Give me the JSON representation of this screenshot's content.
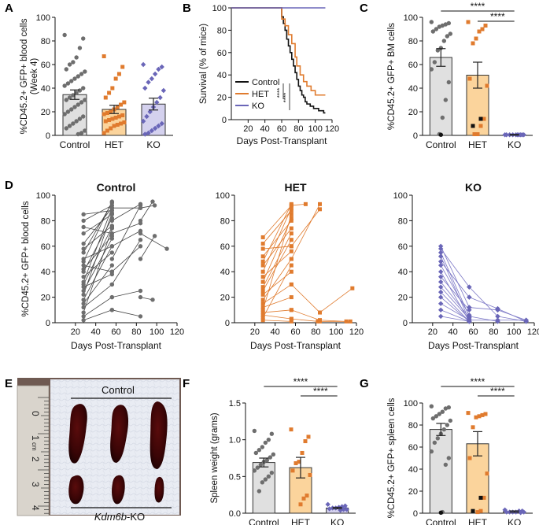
{
  "figure": {
    "panel_labels": [
      "A",
      "B",
      "C",
      "D",
      "E",
      "F",
      "G"
    ],
    "photo": {
      "top_label": "Control",
      "bottom_label": "-KO",
      "bottom_label_italic": "Kdm6b",
      "ruler_ticks": [
        "0",
        "1",
        "2",
        "3",
        "4"
      ],
      "ruler_unit": "cm"
    }
  },
  "colors": {
    "control_fill": "#e0e0e0",
    "control_point": "#6e6e6e",
    "het_fill": "#fbd49c",
    "het_point": "#e07b2e",
    "ko_fill": "#d4d1ee",
    "ko_point": "#6a66b8",
    "black": "#111111"
  },
  "chart_data": [
    {
      "panel": "A",
      "type": "bar",
      "title": "",
      "ylabel": "%CD45.2+ GFP+ blood cells (Week 4)",
      "categories": [
        "Control",
        "HET",
        "KO"
      ],
      "values": [
        34.5,
        22.0,
        26.5
      ],
      "errors": [
        4,
        3.5,
        5
      ],
      "ylim": [
        0,
        100
      ],
      "yticks": [
        0,
        20,
        40,
        60,
        80,
        100
      ],
      "points": [
        [
          85,
          82,
          74,
          66,
          62,
          60,
          56,
          54,
          52,
          50,
          48,
          46,
          44,
          42,
          40,
          38,
          36,
          34,
          32,
          30,
          30,
          28,
          26,
          24,
          22,
          20,
          18,
          16,
          14,
          12,
          10,
          8,
          6,
          4,
          2,
          1
        ],
        [
          67,
          58,
          52,
          48,
          40,
          36,
          32,
          28,
          26,
          24,
          22,
          20,
          19,
          18,
          17,
          16,
          15,
          14,
          13,
          12,
          11,
          10,
          9,
          8,
          6,
          4,
          2
        ],
        [
          60,
          58,
          56,
          52,
          48,
          45,
          40,
          38,
          32,
          28,
          24,
          20,
          16,
          12,
          10,
          8,
          6,
          4,
          2,
          1
        ]
      ]
    },
    {
      "panel": "B",
      "type": "line",
      "ylabel": "Survival (% of mice)",
      "xlabel": "Days Post-Transplant",
      "xlim": [
        0,
        120
      ],
      "ylim": [
        0,
        100
      ],
      "xticks": [
        20,
        40,
        60,
        80,
        100,
        120
      ],
      "yticks": [
        0,
        20,
        40,
        60,
        80,
        100
      ],
      "series": [
        {
          "name": "Control",
          "x": [
            0,
            55,
            60,
            62,
            64,
            66,
            68,
            70,
            72,
            74,
            76,
            78,
            80,
            82,
            84,
            86,
            88,
            90,
            94,
            98,
            104,
            110,
            112
          ],
          "y": [
            100,
            100,
            92,
            86,
            80,
            72,
            66,
            60,
            54,
            48,
            42,
            36,
            30,
            26,
            22,
            20,
            16,
            14,
            12,
            10,
            8,
            6,
            6
          ]
        },
        {
          "name": "HET",
          "x": [
            0,
            55,
            60,
            64,
            68,
            72,
            76,
            78,
            82,
            86,
            90,
            95,
            100,
            112
          ],
          "y": [
            100,
            100,
            90,
            84,
            76,
            68,
            56,
            48,
            40,
            34,
            30,
            26,
            22,
            22
          ]
        },
        {
          "name": "KO",
          "x": [
            0,
            112
          ],
          "y": [
            100,
            100
          ]
        }
      ],
      "significance": [
        "****",
        "****"
      ]
    },
    {
      "panel": "C",
      "type": "bar",
      "ylabel": "%CD45.2+ GFP+ BM cells",
      "categories": [
        "Control",
        "HET",
        "KO"
      ],
      "values": [
        66,
        51,
        0.5
      ],
      "errors": [
        7.5,
        11,
        0.3
      ],
      "ylim": [
        0,
        100
      ],
      "yticks": [
        0,
        20,
        40,
        60,
        80,
        100
      ],
      "points": [
        [
          96,
          95,
          94,
          93,
          92,
          90,
          88,
          86,
          84,
          80,
          74,
          72,
          62,
          56,
          45,
          30,
          15,
          1
        ],
        [
          96,
          93,
          90,
          88,
          82,
          78,
          48,
          42,
          14,
          8,
          1,
          1
        ],
        [
          0.5,
          0.5,
          0.5,
          0.5,
          0.5,
          0.5,
          0.5,
          0.5,
          0.5,
          0.5
        ]
      ],
      "significance": [
        {
          "between": [
            "Control",
            "KO"
          ],
          "label": "****"
        },
        {
          "between": [
            "HET",
            "KO"
          ],
          "label": "****"
        }
      ]
    },
    {
      "panel": "D",
      "type": "line",
      "ylabel": "%CD45.2+ GFP+ blood cells",
      "xlabel": "Days Post-Transplant",
      "subplots": [
        {
          "title": "Control",
          "x_days": [
            28,
            56,
            84,
            112
          ],
          "tracks": [
            [
              28,
              85,
              56,
              88
            ],
            [
              28,
              80,
              56,
              92
            ],
            [
              28,
              75,
              56,
              70
            ],
            [
              28,
              70,
              56,
              85
            ],
            [
              28,
              62,
              56,
              90
            ],
            [
              28,
              58,
              56,
              76
            ],
            [
              28,
              55,
              56,
              94
            ],
            [
              28,
              50,
              56,
              60
            ],
            [
              28,
              48,
              56,
              95
            ],
            [
              28,
              45,
              56,
              40
            ],
            [
              28,
              42,
              56,
              68
            ],
            [
              28,
              40,
              56,
              82
            ],
            [
              28,
              36,
              56,
              55
            ],
            [
              28,
              32,
              56,
              90
            ],
            [
              28,
              30,
              56,
              75
            ],
            [
              28,
              28,
              56,
              38
            ],
            [
              28,
              25,
              56,
              66
            ],
            [
              28,
              22,
              56,
              86
            ],
            [
              28,
              18,
              56,
              60
            ],
            [
              28,
              15,
              56,
              45
            ],
            [
              28,
              12,
              56,
              30
            ],
            [
              28,
              8,
              56,
              74
            ],
            [
              28,
              5,
              56,
              20
            ],
            [
              28,
              2,
              56,
              10
            ],
            [
              56,
              80,
              84,
              93
            ],
            [
              56,
              70,
              84,
              78
            ],
            [
              56,
              90,
              84,
              90
            ],
            [
              56,
              60,
              84,
              72
            ],
            [
              56,
              50,
              84,
              92
            ],
            [
              56,
              40,
              84,
              60
            ],
            [
              56,
              30,
              84,
              65
            ],
            [
              56,
              20,
              84,
              25
            ],
            [
              56,
              10,
              84,
              5
            ],
            [
              84,
              80,
              96,
              95
            ],
            [
              84,
              70,
              110,
              58
            ],
            [
              84,
              90,
              98,
              92
            ],
            [
              84,
              50,
              98,
              68
            ],
            [
              84,
              20,
              96,
              18
            ]
          ]
        },
        {
          "title": "HET",
          "x_days": [
            28,
            56,
            84,
            112
          ],
          "tracks": [
            [
              28,
              67,
              56,
              92
            ],
            [
              28,
              62,
              56,
              88
            ],
            [
              28,
              58,
              56,
              60
            ],
            [
              28,
              52,
              56,
              80
            ],
            [
              28,
              48,
              56,
              93
            ],
            [
              28,
              45,
              56,
              74
            ],
            [
              28,
              40,
              56,
              90
            ],
            [
              28,
              36,
              56,
              56
            ],
            [
              28,
              32,
              56,
              82
            ],
            [
              28,
              28,
              56,
              70
            ],
            [
              28,
              25,
              56,
              65
            ],
            [
              28,
              22,
              56,
              40
            ],
            [
              28,
              18,
              56,
              50
            ],
            [
              28,
              15,
              56,
              30
            ],
            [
              28,
              12,
              56,
              20
            ],
            [
              28,
              10,
              56,
              85
            ],
            [
              28,
              8,
              56,
              10
            ],
            [
              28,
              6,
              56,
              3
            ],
            [
              28,
              4,
              56,
              45
            ],
            [
              28,
              2,
              56,
              1
            ],
            [
              56,
              92,
              70,
              93
            ],
            [
              56,
              60,
              84,
              89
            ],
            [
              56,
              50,
              84,
              93
            ],
            [
              56,
              30,
              84,
              8
            ],
            [
              56,
              10,
              84,
              2
            ],
            [
              56,
              3,
              82,
              1
            ],
            [
              84,
              2,
              110,
              1
            ],
            [
              84,
              8,
              116,
              27
            ],
            [
              84,
              1,
              114,
              1
            ]
          ]
        },
        {
          "title": "KO",
          "x_days": [
            28,
            56,
            84,
            112
          ],
          "tracks": [
            [
              28,
              60,
              56,
              12
            ],
            [
              28,
              58,
              56,
              28
            ],
            [
              28,
              55,
              56,
              5
            ],
            [
              28,
              52,
              56,
              2
            ],
            [
              28,
              48,
              56,
              20
            ],
            [
              28,
              45,
              56,
              6
            ],
            [
              28,
              40,
              56,
              1
            ],
            [
              28,
              36,
              56,
              10
            ],
            [
              28,
              32,
              56,
              4
            ],
            [
              28,
              28,
              56,
              3
            ],
            [
              28,
              24,
              56,
              1
            ],
            [
              28,
              20,
              56,
              1
            ],
            [
              28,
              15,
              56,
              2
            ],
            [
              28,
              10,
              56,
              1
            ],
            [
              28,
              5,
              56,
              1
            ],
            [
              56,
              28,
              84,
              5
            ],
            [
              56,
              12,
              84,
              10
            ],
            [
              56,
              20,
              84,
              11
            ],
            [
              56,
              5,
              84,
              1
            ],
            [
              56,
              2,
              84,
              2
            ],
            [
              84,
              10,
              112,
              2
            ],
            [
              84,
              11,
              112,
              1
            ],
            [
              84,
              5,
              112,
              1
            ],
            [
              84,
              2,
              112,
              2
            ]
          ]
        }
      ],
      "xlim": [
        0,
        120
      ],
      "ylim": [
        0,
        100
      ],
      "xticks": [
        20,
        40,
        60,
        80,
        100,
        120
      ],
      "yticks": [
        0,
        20,
        40,
        60,
        80,
        100
      ]
    },
    {
      "panel": "F",
      "type": "bar",
      "ylabel": "Spleen weight (grams)",
      "categories": [
        "Control",
        "HET",
        "KO"
      ],
      "values": [
        0.69,
        0.62,
        0.07
      ],
      "errors": [
        0.06,
        0.14,
        0.01
      ],
      "ylim": [
        0,
        1.5
      ],
      "yticks": [
        0.0,
        0.5,
        1.0,
        1.5
      ],
      "points": [
        [
          1.12,
          1.08,
          1.0,
          0.96,
          0.9,
          0.86,
          0.82,
          0.8,
          0.76,
          0.72,
          0.7,
          0.66,
          0.62,
          0.58,
          0.55,
          0.5,
          0.46,
          0.42,
          0.3
        ],
        [
          1.14,
          1.04,
          0.98,
          0.82,
          0.7,
          0.68,
          0.58,
          0.52,
          0.24,
          0.2,
          0.12
        ],
        [
          0.12,
          0.1,
          0.09,
          0.08,
          0.07,
          0.07,
          0.06,
          0.05,
          0.05,
          0.04
        ]
      ],
      "significance": [
        {
          "between": [
            "Control",
            "KO"
          ],
          "label": "****"
        },
        {
          "between": [
            "HET",
            "KO"
          ],
          "label": "****"
        }
      ]
    },
    {
      "panel": "G",
      "type": "bar",
      "ylabel": "%CD45.2+ GFP+ spleen cells",
      "categories": [
        "Control",
        "HET",
        "KO"
      ],
      "values": [
        76,
        63,
        1.5
      ],
      "errors": [
        5.5,
        11,
        0.6
      ],
      "ylim": [
        0,
        100
      ],
      "yticks": [
        0,
        20,
        40,
        60,
        80,
        100
      ],
      "points": [
        [
          97,
          96,
          95,
          92,
          90,
          88,
          86,
          84,
          80,
          76,
          72,
          68,
          64,
          56,
          50,
          44,
          1
        ],
        [
          91,
          90,
          89,
          88,
          87,
          78,
          50,
          36,
          14,
          2,
          1
        ],
        [
          3,
          2,
          2,
          1,
          1,
          1,
          1,
          1,
          0.5
        ]
      ],
      "significance": [
        {
          "between": [
            "Control",
            "KO"
          ],
          "label": "****"
        },
        {
          "between": [
            "HET",
            "KO"
          ],
          "label": "****"
        }
      ]
    }
  ]
}
